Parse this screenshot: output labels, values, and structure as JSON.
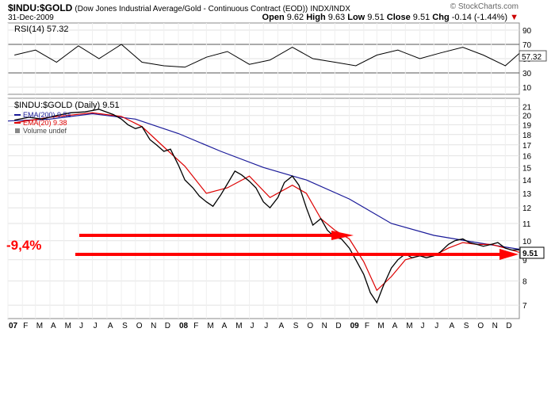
{
  "header": {
    "symbol": "$INDU:$GOLD",
    "description": "(Dow Jones Industrial Average/Gold - Continuous Contract (EOD))",
    "exchange": "INDX/INDX",
    "date": "31-Dec-2009",
    "logo": "© StockCharts.com",
    "open_label": "Open",
    "open": "9.62",
    "high_label": "High",
    "high": "9.63",
    "low_label": "Low",
    "low": "9.51",
    "close_label": "Close",
    "close": "9.51",
    "chg_label": "Chg",
    "chg": "-0.14 (-1.44%)",
    "chg_arrow": "▼"
  },
  "rsi_panel": {
    "label": "RSI(14) 57.32",
    "current": "57.32",
    "ticks": [
      10,
      30,
      50,
      70,
      90
    ],
    "line_color": "#000000"
  },
  "price_panel": {
    "legend_main": "$INDU:$GOLD (Daily) 9.51",
    "legend_ema200": "EMA(200) 9.54",
    "legend_ema20": "EMA(20) 9.38",
    "legend_volume": "Volume undef",
    "last_price": "9.51",
    "ema200_color": "#1a1a99",
    "ema20_color": "#dd0000",
    "price_color": "#000000",
    "annotation_text": "-9,4%",
    "annotation_color": "#ff0000"
  },
  "chart_data": {
    "type": "line",
    "y_scale": "log",
    "ylim": [
      6.5,
      22
    ],
    "yticks": [
      7,
      8,
      9,
      10,
      11,
      12,
      13,
      14,
      15,
      16,
      17,
      18,
      19,
      20,
      21
    ],
    "x_range": [
      "2007-01-01",
      "2009-12-31"
    ],
    "x_tick_labels": [
      "07",
      "F",
      "M",
      "A",
      "M",
      "J",
      "J",
      "A",
      "S",
      "O",
      "N",
      "D",
      "08",
      "F",
      "M",
      "A",
      "M",
      "J",
      "J",
      "A",
      "S",
      "O",
      "N",
      "D",
      "09",
      "F",
      "M",
      "A",
      "M",
      "J",
      "J",
      "A",
      "S",
      "O",
      "N",
      "D"
    ],
    "series": [
      {
        "name": "$INDU:$GOLD",
        "x": [
          "2007-01-15",
          "2007-02-15",
          "2007-03-15",
          "2007-04-15",
          "2007-05-15",
          "2007-06-15",
          "2007-07-15",
          "2007-08-15",
          "2007-09-01",
          "2007-09-15",
          "2007-10-01",
          "2007-10-15",
          "2007-11-01",
          "2007-11-15",
          "2007-12-01",
          "2007-12-15",
          "2008-01-01",
          "2008-01-15",
          "2008-02-01",
          "2008-02-15",
          "2008-03-01",
          "2008-03-15",
          "2008-04-01",
          "2008-04-15",
          "2008-05-01",
          "2008-05-15",
          "2008-06-01",
          "2008-06-15",
          "2008-07-01",
          "2008-07-15",
          "2008-08-01",
          "2008-08-15",
          "2008-09-01",
          "2008-09-15",
          "2008-10-01",
          "2008-10-15",
          "2008-11-01",
          "2008-11-15",
          "2008-12-01",
          "2008-12-15",
          "2009-01-01",
          "2009-01-15",
          "2009-02-01",
          "2009-02-15",
          "2009-03-01",
          "2009-03-15",
          "2009-04-01",
          "2009-04-15",
          "2009-05-01",
          "2009-05-15",
          "2009-06-01",
          "2009-06-15",
          "2009-07-01",
          "2009-07-15",
          "2009-08-01",
          "2009-08-15",
          "2009-09-01",
          "2009-09-15",
          "2009-10-01",
          "2009-10-15",
          "2009-11-01",
          "2009-11-15",
          "2009-12-01",
          "2009-12-15",
          "2009-12-31"
        ],
        "values": [
          19.5,
          19.8,
          19.6,
          20.0,
          20.3,
          20.4,
          20.7,
          20.1,
          19.6,
          19.0,
          18.6,
          18.8,
          17.5,
          17.0,
          16.4,
          16.6,
          15.2,
          14.0,
          13.4,
          12.8,
          12.4,
          12.1,
          12.9,
          13.7,
          14.7,
          14.4,
          13.9,
          13.4,
          12.4,
          12.0,
          12.7,
          13.8,
          14.3,
          13.6,
          12.0,
          10.9,
          11.3,
          10.6,
          10.2,
          10.1,
          9.6,
          9.0,
          8.3,
          7.5,
          7.1,
          7.8,
          8.6,
          9.0,
          9.3,
          9.1,
          9.2,
          9.1,
          9.2,
          9.4,
          9.8,
          10.0,
          10.1,
          9.9,
          9.8,
          9.7,
          9.8,
          9.9,
          9.6,
          9.5,
          9.51
        ]
      },
      {
        "name": "EMA(200)",
        "x": [
          "2007-01-01",
          "2007-04-01",
          "2007-07-01",
          "2007-10-01",
          "2008-01-01",
          "2008-04-01",
          "2008-07-01",
          "2008-10-01",
          "2009-01-01",
          "2009-04-01",
          "2009-07-01",
          "2009-10-01",
          "2009-12-31"
        ],
        "values": [
          19.4,
          19.6,
          20.2,
          19.6,
          18.1,
          16.4,
          15.0,
          14.0,
          12.6,
          11.0,
          10.3,
          9.9,
          9.54
        ]
      },
      {
        "name": "EMA(20)",
        "x": [
          "2007-01-15",
          "2007-04-01",
          "2007-07-01",
          "2007-09-01",
          "2007-10-15",
          "2007-12-01",
          "2008-01-15",
          "2008-03-01",
          "2008-04-15",
          "2008-06-01",
          "2008-07-15",
          "2008-09-01",
          "2008-10-01",
          "2008-11-01",
          "2008-12-01",
          "2009-01-01",
          "2009-02-01",
          "2009-03-01",
          "2009-04-01",
          "2009-05-01",
          "2009-06-01",
          "2009-07-01",
          "2009-08-01",
          "2009-09-01",
          "2009-10-01",
          "2009-11-01",
          "2009-12-01",
          "2009-12-31"
        ],
        "values": [
          19.2,
          19.8,
          20.3,
          19.9,
          18.8,
          16.8,
          15.1,
          13.0,
          13.4,
          14.3,
          12.7,
          13.6,
          13.0,
          11.3,
          10.6,
          10.1,
          8.9,
          7.6,
          8.2,
          9.0,
          9.2,
          9.2,
          9.6,
          9.9,
          9.8,
          9.8,
          9.6,
          9.38
        ]
      }
    ],
    "rsi": {
      "ylim": [
        0,
        100
      ],
      "x": [
        "2007-01-15",
        "2007-03-01",
        "2007-04-15",
        "2007-06-01",
        "2007-07-15",
        "2007-09-01",
        "2007-10-15",
        "2007-12-01",
        "2008-01-15",
        "2008-03-01",
        "2008-04-15",
        "2008-06-01",
        "2008-07-15",
        "2008-09-01",
        "2008-10-15",
        "2008-12-01",
        "2009-01-15",
        "2009-03-01",
        "2009-04-15",
        "2009-06-01",
        "2009-07-15",
        "2009-09-01",
        "2009-10-15",
        "2009-12-01",
        "2009-12-31"
      ],
      "values": [
        55,
        62,
        45,
        68,
        50,
        70,
        45,
        40,
        38,
        52,
        60,
        42,
        48,
        66,
        50,
        45,
        40,
        55,
        62,
        50,
        58,
        66,
        55,
        40,
        57.32
      ]
    }
  }
}
